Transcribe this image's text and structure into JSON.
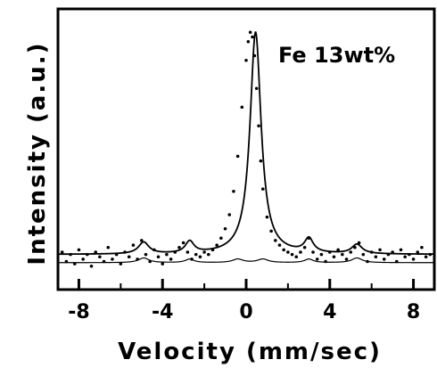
{
  "chart_data": {
    "type": "scatter",
    "xlabel": "Velocity (mm/sec)",
    "ylabel": "Intensity (a.u.)",
    "annotation": "Fe 13wt%",
    "xlim": [
      -9,
      9
    ],
    "ylim": [
      -0.1,
      1.1
    ],
    "x_ticks": [
      -8,
      -4,
      0,
      4,
      8
    ],
    "x_tick_labels": [
      "-8",
      "-4",
      "0",
      "4",
      "8"
    ],
    "grid": false,
    "legend": "none",
    "series": [
      {
        "kind": "data_points",
        "x": [
          -8.8,
          -8.6,
          -8.4,
          -8.2,
          -8.0,
          -7.8,
          -7.6,
          -7.4,
          -7.2,
          -7.0,
          -6.8,
          -6.6,
          -6.4,
          -6.2,
          -6.0,
          -5.8,
          -5.6,
          -5.4,
          -5.2,
          -5.0,
          -4.8,
          -4.6,
          -4.4,
          -4.2,
          -4.0,
          -3.8,
          -3.6,
          -3.4,
          -3.2,
          -3.0,
          -2.8,
          -2.6,
          -2.4,
          -2.2,
          -2.0,
          -1.8,
          -1.6,
          -1.4,
          -1.2,
          -1.0,
          -0.8,
          -0.6,
          -0.4,
          -0.2,
          0.0,
          0.1,
          0.2,
          0.3,
          0.4,
          0.5,
          0.6,
          0.7,
          0.8,
          1.0,
          1.2,
          1.4,
          1.6,
          1.8,
          2.0,
          2.2,
          2.4,
          2.6,
          2.8,
          3.0,
          3.2,
          3.4,
          3.6,
          3.8,
          4.0,
          4.2,
          4.4,
          4.6,
          4.8,
          5.0,
          5.2,
          5.4,
          5.6,
          5.8,
          6.0,
          6.2,
          6.4,
          6.6,
          6.8,
          7.0,
          7.2,
          7.4,
          7.6,
          7.8,
          8.0,
          8.2,
          8.4,
          8.6,
          8.8
        ],
        "y": [
          0.06,
          0.02,
          0.05,
          0.01,
          0.07,
          0.03,
          0.05,
          0.0,
          0.06,
          0.04,
          0.02,
          0.08,
          0.03,
          0.05,
          0.01,
          0.06,
          0.04,
          0.09,
          0.03,
          0.11,
          0.05,
          0.02,
          0.07,
          0.04,
          0.01,
          0.05,
          0.03,
          0.06,
          0.08,
          0.1,
          0.06,
          0.03,
          0.05,
          0.04,
          0.06,
          0.05,
          0.07,
          0.09,
          0.12,
          0.16,
          0.22,
          0.32,
          0.47,
          0.68,
          0.88,
          0.96,
          1.0,
          0.98,
          0.9,
          0.76,
          0.6,
          0.45,
          0.33,
          0.21,
          0.15,
          0.11,
          0.09,
          0.07,
          0.06,
          0.05,
          0.04,
          0.06,
          0.08,
          0.12,
          0.06,
          0.03,
          0.05,
          0.02,
          0.06,
          0.04,
          0.07,
          0.05,
          0.03,
          0.06,
          0.08,
          0.1,
          0.05,
          0.02,
          0.06,
          0.04,
          0.07,
          0.03,
          0.05,
          0.06,
          0.02,
          0.07,
          0.04,
          0.05,
          0.03,
          0.06,
          0.08,
          0.04,
          0.05
        ]
      },
      {
        "kind": "fit_curve",
        "baseline": 0.05,
        "components": [
          {
            "type": "lorentzian",
            "center": 0.45,
            "hwhm": 0.32,
            "amplitude": 0.95
          },
          {
            "type": "lorentzian",
            "center": -4.9,
            "hwhm": 0.3,
            "amplitude": 0.05
          },
          {
            "type": "lorentzian",
            "center": -2.7,
            "hwhm": 0.25,
            "amplitude": 0.05
          },
          {
            "type": "lorentzian",
            "center": 3.0,
            "hwhm": 0.25,
            "amplitude": 0.06
          },
          {
            "type": "lorentzian",
            "center": 5.3,
            "hwhm": 0.3,
            "amplitude": 0.04
          }
        ]
      },
      {
        "kind": "subspectrum",
        "baseline": 0.015,
        "components": [
          {
            "type": "lorentzian",
            "center": -4.9,
            "hwhm": 0.3,
            "amplitude": 0.02
          },
          {
            "type": "lorentzian",
            "center": -2.7,
            "hwhm": 0.25,
            "amplitude": 0.015
          },
          {
            "type": "lorentzian",
            "center": -0.4,
            "hwhm": 0.3,
            "amplitude": 0.015
          },
          {
            "type": "lorentzian",
            "center": 0.8,
            "hwhm": 0.3,
            "amplitude": 0.015
          },
          {
            "type": "lorentzian",
            "center": 3.0,
            "hwhm": 0.25,
            "amplitude": 0.015
          },
          {
            "type": "lorentzian",
            "center": 5.3,
            "hwhm": 0.3,
            "amplitude": 0.02
          }
        ]
      }
    ]
  }
}
